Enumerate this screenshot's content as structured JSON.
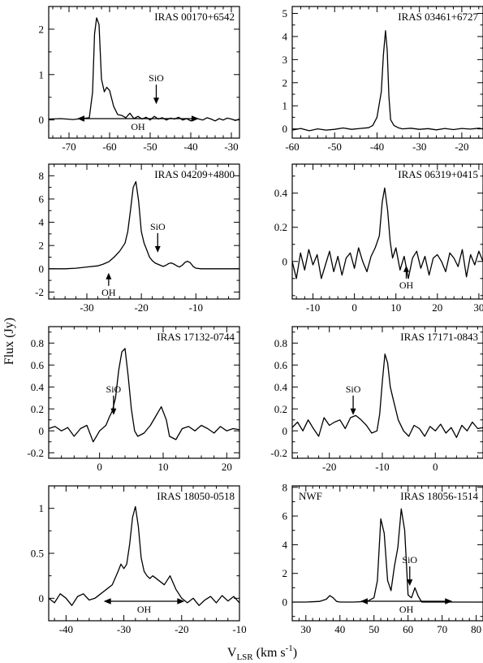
{
  "figure": {
    "ylabel": "Flux (Jy)",
    "xlabel_main": "V",
    "xlabel_sub": "LSR",
    "xlabel_units": " (km s",
    "xlabel_exp": "-1",
    "xlabel_close": ")"
  },
  "chart_data": [
    {
      "type": "line",
      "title": "IRAS 00170+6542",
      "xlim": [
        -75,
        -28
      ],
      "ylim": [
        -0.4,
        2.5
      ],
      "xticks": [
        -70,
        -60,
        -50,
        -40,
        -30
      ],
      "yticks": [
        0,
        1,
        2
      ],
      "series": [
        {
          "x": [
            -75,
            -72,
            -69,
            -67,
            -65,
            -64.2,
            -63.7,
            -63.2,
            -62.6,
            -62,
            -61.3,
            -60.7,
            -60,
            -59,
            -58,
            -57,
            -56,
            -55,
            -54,
            -53,
            -52,
            -51,
            -50,
            -49,
            -48,
            -47,
            -46,
            -45,
            -44,
            -43,
            -42,
            -41,
            -40,
            -39,
            -38,
            -37,
            -36,
            -35,
            -34,
            -33,
            -32,
            -31,
            -30,
            -29,
            -28
          ],
          "y": [
            0.02,
            0.03,
            0.01,
            0.03,
            0.05,
            0.6,
            1.9,
            2.25,
            2.1,
            0.9,
            0.62,
            0.72,
            0.65,
            0.3,
            0.12,
            0.1,
            0.05,
            0.15,
            0.03,
            0.08,
            0.02,
            0.06,
            0.0,
            0.08,
            0.02,
            0.05,
            0.0,
            0.04,
            0.02,
            0.06,
            0.0,
            0.03,
            -0.02,
            0.04,
            0.02,
            0.0,
            0.05,
            0.02,
            -0.02,
            0.03,
            0.0,
            0.04,
            0.02,
            -0.01,
            0.02
          ]
        }
      ],
      "annotations": [
        {
          "label": "SiO",
          "type": "arrow-down",
          "x": -48.5
        },
        {
          "label": "OH",
          "type": "double-arrow",
          "x1": -68,
          "x2": -38
        }
      ]
    },
    {
      "type": "line",
      "title": "IRAS 03461+6727",
      "xlim": [
        -60,
        -15
      ],
      "ylim": [
        -0.4,
        5.3
      ],
      "xticks": [
        -60,
        -50,
        -40,
        -30,
        -20
      ],
      "yticks": [
        0,
        1,
        2,
        3,
        4,
        5
      ],
      "series": [
        {
          "x": [
            -60,
            -58,
            -56,
            -54,
            -52,
            -50,
            -48,
            -46,
            -44,
            -42,
            -41,
            -40,
            -39,
            -38.5,
            -38,
            -37.6,
            -37.2,
            -36.8,
            -36,
            -35,
            -34,
            -32,
            -30,
            -28,
            -26,
            -24,
            -22,
            -20,
            -18,
            -16,
            -15
          ],
          "y": [
            -0.05,
            0.02,
            -0.08,
            0.0,
            -0.05,
            -0.02,
            0.04,
            -0.02,
            0.02,
            0.05,
            0.15,
            0.5,
            1.6,
            3.2,
            4.25,
            3.4,
            1.4,
            0.4,
            0.15,
            0.05,
            0.0,
            0.03,
            -0.02,
            0.01,
            -0.04,
            0.02,
            -0.03,
            0.02,
            -0.01,
            0.03,
            0.0
          ]
        }
      ],
      "annotations": []
    },
    {
      "type": "line",
      "title": "IRAS 04209+4800",
      "xlim": [
        -37,
        -2
      ],
      "ylim": [
        -2.6,
        9
      ],
      "xticks": [
        -30,
        -20,
        -10
      ],
      "yticks": [
        -2,
        0,
        2,
        4,
        6,
        8
      ],
      "series": [
        {
          "x": [
            -37,
            -34,
            -32,
            -30,
            -28,
            -27,
            -26,
            -25,
            -24,
            -23,
            -22.5,
            -22,
            -21.5,
            -21,
            -20.5,
            -20,
            -19.5,
            -19,
            -18.5,
            -18,
            -17.5,
            -17,
            -16.5,
            -16,
            -15.5,
            -15,
            -14.5,
            -14,
            -13.5,
            -13,
            -12.5,
            -12,
            -11.5,
            -11,
            -10.5,
            -10,
            -9,
            -8,
            -6,
            -4,
            -2
          ],
          "y": [
            0.0,
            0.0,
            0.05,
            0.15,
            0.25,
            0.4,
            0.6,
            1.0,
            1.5,
            2.2,
            3.2,
            5.0,
            7.0,
            7.5,
            5.8,
            3.2,
            2.2,
            1.6,
            1.0,
            0.7,
            0.5,
            0.4,
            0.3,
            0.2,
            0.3,
            0.45,
            0.5,
            0.4,
            0.25,
            0.15,
            0.3,
            0.55,
            0.65,
            0.5,
            0.2,
            0.05,
            0.0,
            0.0,
            0.0,
            0.0,
            0.0
          ]
        }
      ],
      "annotations": [
        {
          "label": "SiO",
          "type": "arrow-down",
          "x": -17
        },
        {
          "label": "OH",
          "type": "arrow-up",
          "x": -26
        }
      ]
    },
    {
      "type": "line",
      "title": "IRAS 06319+0415",
      "xlim": [
        -15,
        31
      ],
      "ylim": [
        -0.22,
        0.57
      ],
      "xticks": [
        -10,
        0,
        10,
        20,
        30
      ],
      "yticks": [
        0,
        0.2,
        0.4
      ],
      "series": [
        {
          "x": [
            -15,
            -14,
            -13,
            -12,
            -11,
            -10,
            -9,
            -8,
            -7,
            -6,
            -5,
            -4,
            -3,
            -2,
            -1,
            0,
            1,
            2,
            3,
            4,
            5,
            6,
            6.7,
            7.3,
            8,
            8.6,
            9.2,
            10,
            11,
            12,
            13,
            14,
            15,
            16,
            17,
            18,
            19,
            20,
            21,
            22,
            23,
            24,
            25,
            26,
            27,
            28,
            29,
            30,
            31
          ],
          "y": [
            0.0,
            -0.1,
            0.05,
            -0.05,
            0.07,
            -0.02,
            0.04,
            -0.1,
            -0.02,
            0.06,
            -0.06,
            0.03,
            -0.08,
            0.02,
            0.05,
            -0.04,
            0.08,
            0.0,
            -0.06,
            0.03,
            0.08,
            0.15,
            0.35,
            0.43,
            0.3,
            0.12,
            0.02,
            0.08,
            -0.05,
            0.03,
            -0.1,
            0.02,
            0.06,
            -0.04,
            0.03,
            -0.08,
            0.02,
            0.04,
            0.0,
            -0.06,
            0.05,
            0.02,
            -0.03,
            0.07,
            -0.09,
            0.04,
            -0.02,
            0.06,
            0.0
          ]
        }
      ],
      "annotations": [
        {
          "label": "OH",
          "type": "arrow-up",
          "x": 12.5
        }
      ]
    },
    {
      "type": "line",
      "title": "IRAS 17132-0744",
      "xlim": [
        -8,
        22
      ],
      "ylim": [
        -0.25,
        0.95
      ],
      "xticks": [
        0,
        10,
        20
      ],
      "yticks": [
        -0.2,
        0,
        0.2,
        0.4,
        0.6,
        0.8
      ],
      "series": [
        {
          "x": [
            -8,
            -7,
            -6,
            -5,
            -4,
            -3,
            -2,
            -1,
            0,
            1,
            1.5,
            2,
            2.5,
            3,
            3.5,
            4,
            4.5,
            5,
            5.5,
            6,
            7,
            8,
            9,
            9.7,
            10.5,
            11,
            12,
            13,
            14,
            15,
            16,
            17,
            18,
            19,
            20,
            21,
            22
          ],
          "y": [
            0.02,
            0.04,
            0.0,
            0.03,
            -0.05,
            0.02,
            0.05,
            -0.1,
            0.0,
            0.05,
            0.12,
            0.18,
            0.3,
            0.55,
            0.72,
            0.75,
            0.5,
            0.2,
            0.0,
            -0.05,
            -0.02,
            0.05,
            0.15,
            0.22,
            0.1,
            -0.05,
            -0.08,
            0.02,
            0.04,
            0.0,
            0.05,
            0.02,
            -0.02,
            0.04,
            0.0,
            0.02,
            0.01
          ]
        }
      ],
      "annotations": [
        {
          "label": "SiO",
          "type": "arrow-down",
          "x": 2.2
        }
      ]
    },
    {
      "type": "line",
      "title": "IRAS 17171-0843",
      "xlim": [
        -27,
        9
      ],
      "ylim": [
        -0.25,
        0.95
      ],
      "xticks": [
        -20,
        -10,
        0
      ],
      "yticks": [
        -0.2,
        0,
        0.2,
        0.4,
        0.6,
        0.8
      ],
      "series": [
        {
          "x": [
            -27,
            -26,
            -25,
            -24,
            -23,
            -22,
            -21,
            -20,
            -19,
            -18,
            -17,
            -16,
            -15,
            -14,
            -13,
            -12,
            -11,
            -10.5,
            -10,
            -9.5,
            -9,
            -8.5,
            -8,
            -7,
            -6,
            -5,
            -4,
            -3,
            -2,
            -1,
            0,
            1,
            2,
            3,
            4,
            5,
            6,
            7,
            8,
            9
          ],
          "y": [
            0.03,
            0.08,
            0.0,
            0.1,
            0.02,
            -0.05,
            0.12,
            0.05,
            0.08,
            0.1,
            0.02,
            0.12,
            0.14,
            0.1,
            0.05,
            -0.02,
            0.0,
            0.15,
            0.45,
            0.7,
            0.62,
            0.4,
            0.3,
            0.1,
            0.0,
            -0.05,
            0.05,
            0.02,
            -0.05,
            0.04,
            0.0,
            0.06,
            -0.02,
            0.03,
            -0.06,
            0.05,
            0.0,
            0.08,
            0.02,
            0.03
          ]
        }
      ],
      "annotations": [
        {
          "label": "SiO",
          "type": "arrow-down",
          "x": -15.5
        }
      ]
    },
    {
      "type": "line",
      "title": "IRAS 18050-0518",
      "xlim": [
        -43,
        -10
      ],
      "ylim": [
        -0.25,
        1.25
      ],
      "xticks": [
        -40,
        -30,
        -20,
        -10
      ],
      "yticks": [
        0,
        0.5,
        1
      ],
      "series": [
        {
          "x": [
            -43,
            -42,
            -41,
            -40,
            -39,
            -38,
            -37,
            -36,
            -35,
            -34,
            -33,
            -32,
            -31,
            -30.5,
            -30,
            -29.5,
            -29,
            -28.5,
            -28,
            -27.5,
            -27,
            -26.5,
            -26,
            -25.5,
            -25,
            -24,
            -23,
            -22,
            -21,
            -20,
            -19,
            -18,
            -17,
            -16,
            -15,
            -14,
            -13,
            -12,
            -11,
            -10
          ],
          "y": [
            0.0,
            -0.05,
            0.05,
            0.0,
            -0.08,
            0.02,
            0.05,
            -0.02,
            0.0,
            0.05,
            0.1,
            0.15,
            0.3,
            0.38,
            0.33,
            0.38,
            0.6,
            0.9,
            1.02,
            0.8,
            0.45,
            0.3,
            0.25,
            0.22,
            0.25,
            0.2,
            0.15,
            0.25,
            0.1,
            0.0,
            -0.05,
            0.0,
            -0.08,
            -0.02,
            0.02,
            -0.05,
            0.03,
            -0.03,
            0.02,
            -0.05
          ]
        }
      ],
      "annotations": [
        {
          "label": "OH",
          "type": "double-arrow",
          "x1": -33.5,
          "x2": -19.5
        }
      ]
    },
    {
      "type": "line",
      "title": "IRAS 18056-1514",
      "subtitle": "NWF",
      "xlim": [
        26,
        82
      ],
      "ylim": [
        -1.3,
        8.1
      ],
      "xticks": [
        30,
        40,
        50,
        60,
        70,
        80
      ],
      "yticks": [
        0,
        2,
        4,
        6,
        8
      ],
      "series": [
        {
          "x": [
            26,
            30,
            34,
            36,
            37,
            38,
            39,
            40,
            44,
            48,
            50,
            51,
            52,
            53,
            54,
            55,
            56,
            57,
            58,
            59,
            60,
            61,
            62,
            63,
            64,
            66,
            70,
            75,
            80,
            82
          ],
          "y": [
            0.0,
            0.0,
            0.05,
            0.2,
            0.45,
            0.3,
            0.05,
            0.0,
            0.0,
            0.05,
            0.3,
            1.5,
            5.8,
            4.8,
            1.5,
            0.8,
            2.5,
            3.8,
            6.5,
            5.0,
            0.5,
            0.3,
            1.0,
            0.4,
            0.0,
            0.0,
            0.0,
            0.0,
            0.0,
            0.0
          ]
        }
      ],
      "annotations": [
        {
          "label": "SiO",
          "type": "arrow-down",
          "x": 60.5
        },
        {
          "label": "OH",
          "type": "double-arrow",
          "x1": 46,
          "x2": 73
        }
      ]
    }
  ]
}
